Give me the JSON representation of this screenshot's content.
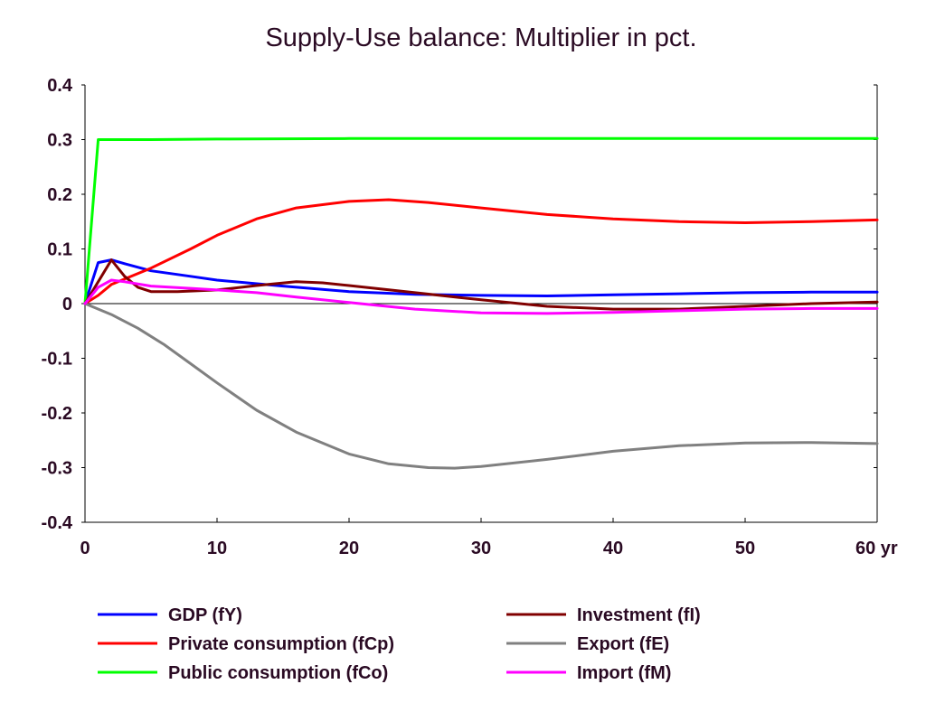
{
  "chart_data": {
    "type": "line",
    "title": "Supply-Use balance: Multiplier in pct.",
    "xlabel": "",
    "ylabel": "",
    "x_unit": "yr",
    "xlim": [
      0,
      60
    ],
    "ylim": [
      -0.4,
      0.4
    ],
    "x_ticks": [
      0,
      10,
      20,
      30,
      40,
      50,
      60
    ],
    "x_tick_labels": [
      "0",
      "10",
      "20",
      "30",
      "40",
      "50",
      "60 yr"
    ],
    "y_ticks": [
      -0.4,
      -0.3,
      -0.2,
      -0.1,
      0,
      0.1,
      0.2,
      0.3,
      0.4
    ],
    "y_tick_labels": [
      "-0.4",
      "-0.3",
      "-0.2",
      "-0.1",
      "0",
      "0.1",
      "0.2",
      "0.3",
      "0.4"
    ],
    "grid": false,
    "zero_line": true,
    "legend_position": "bottom",
    "series": [
      {
        "name": "GDP (fY)",
        "color": "#0000ff",
        "points": [
          [
            0,
            0
          ],
          [
            1,
            0.075
          ],
          [
            2,
            0.08
          ],
          [
            3,
            0.073
          ],
          [
            5,
            0.06
          ],
          [
            8,
            0.05
          ],
          [
            10,
            0.043
          ],
          [
            15,
            0.032
          ],
          [
            20,
            0.022
          ],
          [
            25,
            0.017
          ],
          [
            30,
            0.015
          ],
          [
            35,
            0.014
          ],
          [
            40,
            0.016
          ],
          [
            45,
            0.018
          ],
          [
            50,
            0.02
          ],
          [
            55,
            0.021
          ],
          [
            60,
            0.021
          ]
        ]
      },
      {
        "name": "Private consumption (fCp)",
        "color": "#ff0000",
        "points": [
          [
            0,
            0
          ],
          [
            1,
            0.015
          ],
          [
            2,
            0.035
          ],
          [
            3,
            0.045
          ],
          [
            5,
            0.065
          ],
          [
            8,
            0.1
          ],
          [
            10,
            0.125
          ],
          [
            13,
            0.155
          ],
          [
            16,
            0.175
          ],
          [
            20,
            0.187
          ],
          [
            23,
            0.19
          ],
          [
            26,
            0.185
          ],
          [
            30,
            0.175
          ],
          [
            35,
            0.163
          ],
          [
            40,
            0.155
          ],
          [
            45,
            0.15
          ],
          [
            50,
            0.148
          ],
          [
            55,
            0.15
          ],
          [
            60,
            0.153
          ]
        ]
      },
      {
        "name": "Public consumption (fCo)",
        "color": "#00ff00",
        "points": [
          [
            0,
            0
          ],
          [
            1,
            0.3
          ],
          [
            5,
            0.3
          ],
          [
            10,
            0.301
          ],
          [
            20,
            0.302
          ],
          [
            30,
            0.302
          ],
          [
            40,
            0.302
          ],
          [
            50,
            0.302
          ],
          [
            60,
            0.302
          ]
        ]
      },
      {
        "name": "Investment (fI)",
        "color": "#800000",
        "points": [
          [
            0,
            0
          ],
          [
            1,
            0.04
          ],
          [
            2,
            0.08
          ],
          [
            3,
            0.05
          ],
          [
            4,
            0.03
          ],
          [
            5,
            0.022
          ],
          [
            7,
            0.022
          ],
          [
            10,
            0.025
          ],
          [
            13,
            0.033
          ],
          [
            16,
            0.04
          ],
          [
            18,
            0.038
          ],
          [
            20,
            0.033
          ],
          [
            25,
            0.02
          ],
          [
            30,
            0.007
          ],
          [
            35,
            -0.005
          ],
          [
            40,
            -0.01
          ],
          [
            45,
            -0.01
          ],
          [
            50,
            -0.005
          ],
          [
            55,
            0
          ],
          [
            60,
            0.003
          ]
        ]
      },
      {
        "name": "Export (fE)",
        "color": "#808080",
        "points": [
          [
            0,
            0
          ],
          [
            2,
            -0.02
          ],
          [
            4,
            -0.045
          ],
          [
            6,
            -0.075
          ],
          [
            8,
            -0.11
          ],
          [
            10,
            -0.145
          ],
          [
            13,
            -0.195
          ],
          [
            16,
            -0.235
          ],
          [
            20,
            -0.275
          ],
          [
            23,
            -0.293
          ],
          [
            26,
            -0.3
          ],
          [
            28,
            -0.301
          ],
          [
            30,
            -0.298
          ],
          [
            35,
            -0.285
          ],
          [
            40,
            -0.27
          ],
          [
            45,
            -0.26
          ],
          [
            50,
            -0.255
          ],
          [
            55,
            -0.254
          ],
          [
            60,
            -0.256
          ]
        ]
      },
      {
        "name": "Import (fM)",
        "color": "#ff00ff",
        "points": [
          [
            0,
            0
          ],
          [
            1,
            0.03
          ],
          [
            2,
            0.043
          ],
          [
            3,
            0.04
          ],
          [
            5,
            0.032
          ],
          [
            8,
            0.028
          ],
          [
            10,
            0.025
          ],
          [
            13,
            0.02
          ],
          [
            16,
            0.012
          ],
          [
            20,
            0.002
          ],
          [
            25,
            -0.01
          ],
          [
            30,
            -0.017
          ],
          [
            35,
            -0.018
          ],
          [
            40,
            -0.016
          ],
          [
            45,
            -0.013
          ],
          [
            50,
            -0.01
          ],
          [
            55,
            -0.009
          ],
          [
            60,
            -0.009
          ]
        ]
      }
    ]
  }
}
